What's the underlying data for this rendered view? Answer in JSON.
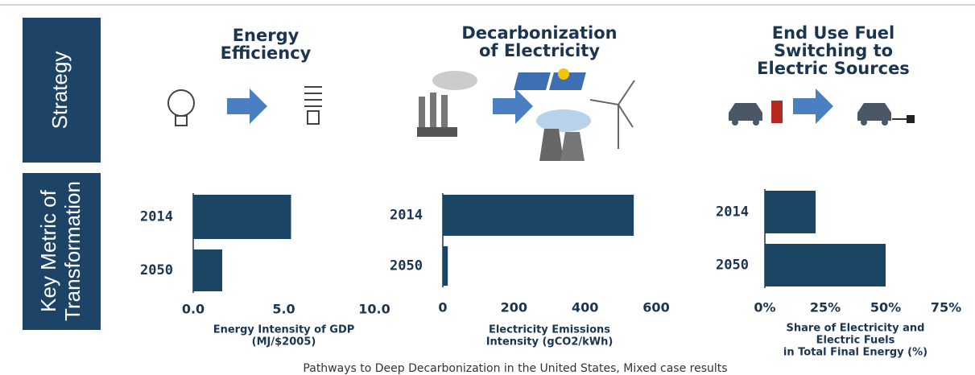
{
  "row_labels": [
    "Strategy",
    [
      "Key Metric of",
      "Transformation"
    ]
  ],
  "caption": "Pathways to Deep Decarbonization in the United States, Mixed case results",
  "chart_data": [
    {
      "type": "bar",
      "orientation": "horizontal",
      "title": [
        "Energy",
        "Efficiency"
      ],
      "categories": [
        "2014",
        "2050"
      ],
      "values": [
        5.4,
        1.6
      ],
      "color": "#1b4565",
      "xlim": [
        0,
        10
      ],
      "xticks": [
        {
          "value": 0,
          "label": "0.0"
        },
        {
          "value": 5,
          "label": "5.0"
        },
        {
          "value": 10,
          "label": "10.0"
        }
      ],
      "x_label": [
        "Energy Intensity of GDP",
        "(MJ/$2005)"
      ]
    },
    {
      "type": "bar",
      "orientation": "horizontal",
      "title": [
        "Decarbonization",
        "of Electricity"
      ],
      "categories": [
        "2014",
        "2050"
      ],
      "values": [
        537,
        14
      ],
      "color": "#1b4565",
      "xlim": [
        0,
        600
      ],
      "xticks": [
        0,
        200,
        400,
        600
      ],
      "x_label": [
        "Electricity Emissions",
        "Intensity (gCO2/kWh)"
      ]
    },
    {
      "type": "bar",
      "orientation": "horizontal",
      "title": [
        "End Use Fuel",
        "Switching to",
        "Electric Sources"
      ],
      "categories": [
        "2014",
        "2050"
      ],
      "values": [
        21,
        50
      ],
      "color": "#1b4565",
      "xlim": [
        0,
        75
      ],
      "xticks": [
        {
          "value": 0,
          "label": "0%"
        },
        {
          "value": 25,
          "label": "25%"
        },
        {
          "value": 50,
          "label": "50%"
        },
        {
          "value": 75,
          "label": "75%"
        }
      ],
      "x_label": [
        "Share of Electricity and",
        "Electric Fuels",
        "in Total Final Energy (%)"
      ]
    }
  ]
}
